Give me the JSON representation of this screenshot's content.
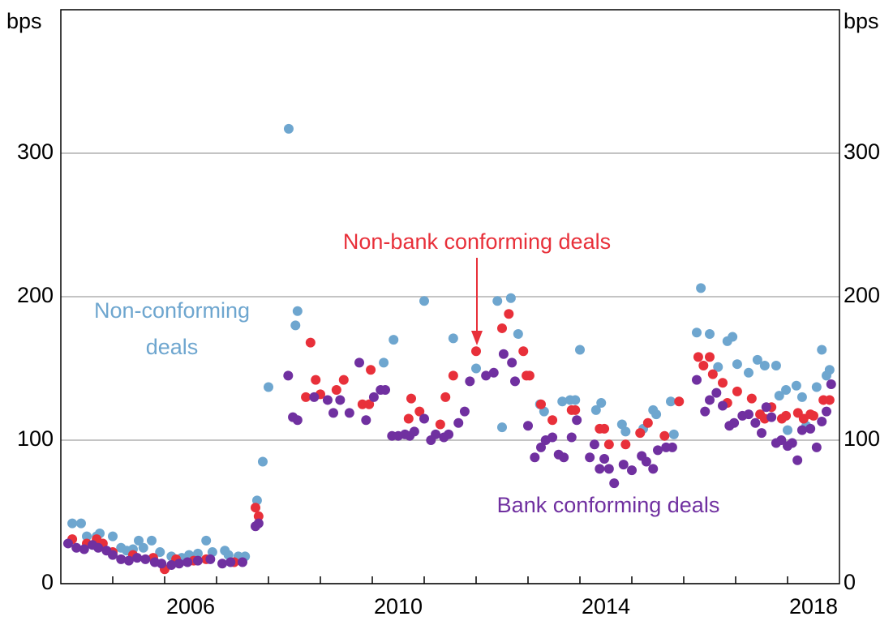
{
  "chart_data": {
    "type": "scatter",
    "y_label": "bps",
    "y2_label": "bps",
    "xlim": [
      2004,
      2019
    ],
    "xticks": [
      {
        "value": 2006.5,
        "label": "2006"
      },
      {
        "value": 2010.5,
        "label": "2010"
      },
      {
        "value": 2014.5,
        "label": "2014"
      },
      {
        "value": 2018.5,
        "label": "2018"
      }
    ],
    "xminor_ticks": [
      2005,
      2006,
      2007,
      2008,
      2009,
      2010,
      2011,
      2012,
      2013,
      2014,
      2015,
      2016,
      2017,
      2018
    ],
    "ylim": [
      0,
      400
    ],
    "yticks": [
      0,
      100,
      200,
      300
    ],
    "y2lim": [
      0,
      400
    ],
    "y2ticks": [
      0,
      100,
      200,
      300
    ],
    "grid": true,
    "series": [
      {
        "name": "Non-conforming deals",
        "color": "#6ea6cf",
        "x": [
          2004.22,
          2004.39,
          2004.5,
          2004.69,
          2004.75,
          2005.0,
          2005.16,
          2005.27,
          2005.39,
          2005.5,
          2005.59,
          2005.75,
          2005.91,
          2006.13,
          2006.33,
          2006.47,
          2006.64,
          2006.8,
          2006.92,
          2007.16,
          2007.23,
          2007.42,
          2007.55,
          2007.78,
          2007.89,
          2008.0,
          2008.39,
          2008.52,
          2008.56,
          2010.22,
          2010.41,
          2011.0,
          2011.56,
          2012.0,
          2012.41,
          2012.5,
          2012.67,
          2012.81,
          2013.23,
          2013.31,
          2013.66,
          2013.81,
          2013.91,
          2014.0,
          2014.31,
          2014.41,
          2014.81,
          2014.88,
          2015.22,
          2015.41,
          2015.47,
          2015.75,
          2015.81,
          2016.25,
          2016.33,
          2016.5,
          2016.66,
          2016.84,
          2016.94,
          2017.03,
          2017.25,
          2017.42,
          2017.56,
          2017.78,
          2017.84,
          2017.97,
          2018.0,
          2018.17,
          2018.28,
          2018.36,
          2018.56,
          2018.66,
          2018.75,
          2018.81
        ],
        "values": [
          42,
          42,
          33,
          33,
          35,
          33,
          25,
          23,
          24,
          30,
          25,
          30,
          22,
          19,
          18,
          20,
          21,
          30,
          22,
          23,
          20,
          19,
          19,
          58,
          85,
          137,
          317,
          180,
          190,
          154,
          170,
          197,
          171,
          150,
          197,
          109,
          199,
          174,
          125,
          120,
          127,
          128,
          128,
          163,
          121,
          126,
          111,
          106,
          108,
          121,
          118,
          127,
          104,
          175,
          206,
          174,
          151,
          169,
          172,
          153,
          147,
          156,
          152,
          152,
          131,
          135,
          107,
          138,
          130,
          110,
          137,
          163,
          145,
          149
        ]
      },
      {
        "name": "Non-bank conforming deals",
        "color": "#e8303a",
        "x": [
          2004.22,
          2004.5,
          2004.69,
          2004.81,
          2005.0,
          2005.39,
          2005.78,
          2006.0,
          2006.22,
          2006.56,
          2006.8,
          2007.34,
          2007.75,
          2007.81,
          2008.72,
          2008.81,
          2008.91,
          2009.0,
          2009.31,
          2009.45,
          2009.81,
          2009.94,
          2009.97,
          2010.7,
          2010.75,
          2010.91,
          2011.31,
          2011.41,
          2011.56,
          2012.0,
          2012.5,
          2012.63,
          2012.91,
          2012.97,
          2013.03,
          2013.25,
          2013.47,
          2013.84,
          2013.91,
          2014.38,
          2014.47,
          2014.56,
          2014.88,
          2015.16,
          2015.31,
          2015.63,
          2015.91,
          2016.28,
          2016.38,
          2016.5,
          2016.56,
          2016.75,
          2016.84,
          2017.03,
          2017.31,
          2017.47,
          2017.56,
          2017.69,
          2017.89,
          2017.97,
          2018.2,
          2018.31,
          2018.44,
          2018.5,
          2018.69,
          2018.81
        ],
        "values": [
          31,
          28,
          31,
          28,
          22,
          20,
          18,
          10,
          17,
          16,
          17,
          15,
          53,
          47,
          130,
          168,
          142,
          132,
          135,
          142,
          125,
          125,
          149,
          115,
          129,
          120,
          111,
          130,
          145,
          162,
          178,
          188,
          162,
          145,
          145,
          125,
          114,
          121,
          121,
          108,
          108,
          97,
          97,
          105,
          112,
          103,
          127,
          158,
          152,
          158,
          146,
          140,
          126,
          134,
          129,
          118,
          115,
          123,
          115,
          117,
          119,
          115,
          118,
          117,
          128,
          128
        ]
      },
      {
        "name": "Bank conforming deals",
        "color": "#7030a0",
        "x": [
          2004.14,
          2004.3,
          2004.45,
          2004.61,
          2004.72,
          2004.88,
          2005.0,
          2005.16,
          2005.31,
          2005.47,
          2005.63,
          2005.81,
          2005.94,
          2006.13,
          2006.28,
          2006.44,
          2006.64,
          2006.88,
          2007.11,
          2007.27,
          2007.5,
          2007.75,
          2007.81,
          2008.38,
          2008.47,
          2008.56,
          2008.88,
          2009.14,
          2009.25,
          2009.38,
          2009.56,
          2009.75,
          2009.88,
          2010.03,
          2010.16,
          2010.25,
          2010.38,
          2010.5,
          2010.63,
          2010.72,
          2010.81,
          2011.0,
          2011.13,
          2011.22,
          2011.38,
          2011.47,
          2011.66,
          2011.78,
          2011.88,
          2012.19,
          2012.34,
          2012.53,
          2012.69,
          2012.75,
          2013.0,
          2013.13,
          2013.25,
          2013.34,
          2013.47,
          2013.59,
          2013.69,
          2013.84,
          2013.94,
          2014.19,
          2014.28,
          2014.38,
          2014.47,
          2014.56,
          2014.66,
          2014.84,
          2015.0,
          2015.19,
          2015.28,
          2015.41,
          2015.5,
          2015.66,
          2015.78,
          2016.25,
          2016.41,
          2016.5,
          2016.63,
          2016.75,
          2016.88,
          2016.97,
          2017.13,
          2017.25,
          2017.38,
          2017.5,
          2017.59,
          2017.69,
          2017.78,
          2017.88,
          2018.0,
          2018.09,
          2018.19,
          2018.28,
          2018.44,
          2018.56,
          2018.66,
          2018.75,
          2018.84
        ],
        "values": [
          28,
          25,
          24,
          27,
          25,
          23,
          20,
          17,
          16,
          18,
          17,
          15,
          14,
          13,
          14,
          15,
          16,
          17,
          14,
          15,
          15,
          40,
          42,
          145,
          116,
          114,
          130,
          128,
          119,
          128,
          119,
          154,
          114,
          130,
          135,
          135,
          103,
          103,
          104,
          103,
          106,
          115,
          100,
          104,
          102,
          104,
          112,
          120,
          141,
          145,
          147,
          160,
          154,
          141,
          110,
          88,
          95,
          100,
          102,
          90,
          88,
          102,
          114,
          88,
          97,
          80,
          87,
          80,
          70,
          83,
          79,
          89,
          85,
          80,
          93,
          95,
          95,
          142,
          120,
          128,
          133,
          124,
          110,
          112,
          117,
          118,
          112,
          105,
          123,
          116,
          98,
          100,
          96,
          98,
          86,
          107,
          108,
          95,
          113,
          120,
          139
        ]
      }
    ],
    "annotations": [
      {
        "lines": [
          "Non-conforming",
          "deals"
        ],
        "color": "#6ea6cf"
      },
      {
        "lines": [
          "Non-bank conforming deals"
        ],
        "color": "#e8303a"
      },
      {
        "lines": [
          "Bank conforming deals"
        ],
        "color": "#7030a0"
      }
    ]
  }
}
